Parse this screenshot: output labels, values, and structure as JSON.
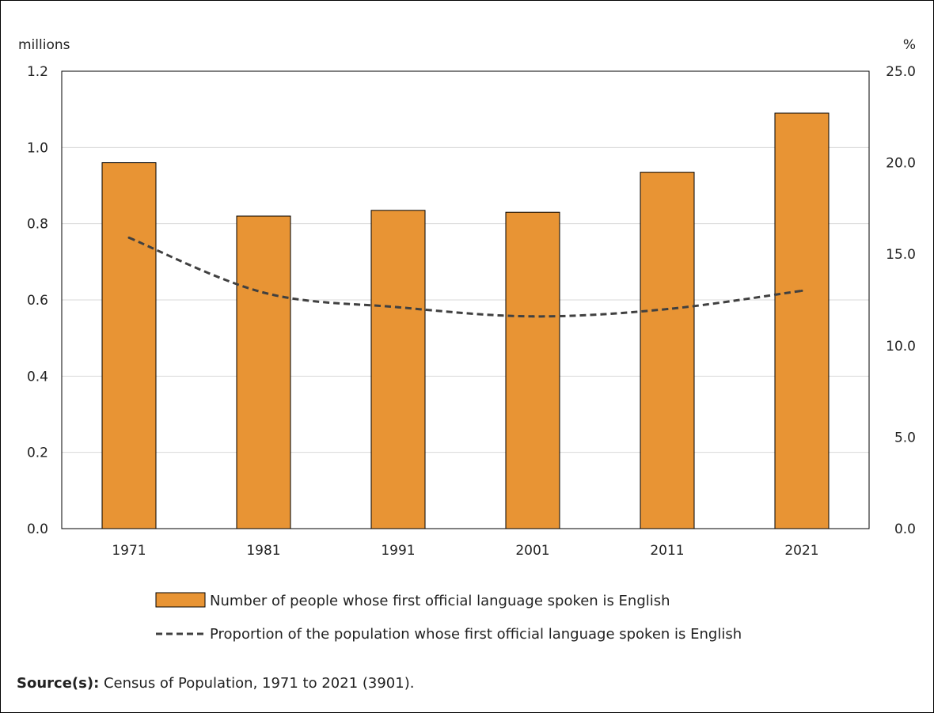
{
  "chart_data": {
    "type": "bar",
    "categories": [
      "1971",
      "1981",
      "1991",
      "2001",
      "2011",
      "2021"
    ],
    "series": [
      {
        "name": "Number of people whose first official language spoken is English",
        "type": "bar",
        "axis": "left",
        "color": "#E89434",
        "values": [
          0.96,
          0.82,
          0.835,
          0.83,
          0.935,
          1.09
        ]
      },
      {
        "name": "Proportion of the population whose first official language spoken is English",
        "type": "line",
        "axis": "right",
        "color": "#404040",
        "style": "dashed",
        "values": [
          15.9,
          12.9,
          12.1,
          11.6,
          12.0,
          13.0
        ]
      }
    ],
    "ylabel_left": "millions",
    "ylabel_right": "%",
    "ylim_left": [
      0,
      1.2
    ],
    "ylim_right": [
      0,
      25
    ],
    "yticks_left": [
      "0.0",
      "0.2",
      "0.4",
      "0.6",
      "0.8",
      "1.0",
      "1.2"
    ],
    "yticks_right": [
      "0.0",
      "5.0",
      "10.0",
      "15.0",
      "20.0",
      "25.0"
    ],
    "grid": true,
    "legend_position": "bottom"
  },
  "source": {
    "label": "Source(s):",
    "text": " Census of Population, 1971 to 2021 (3901)."
  }
}
